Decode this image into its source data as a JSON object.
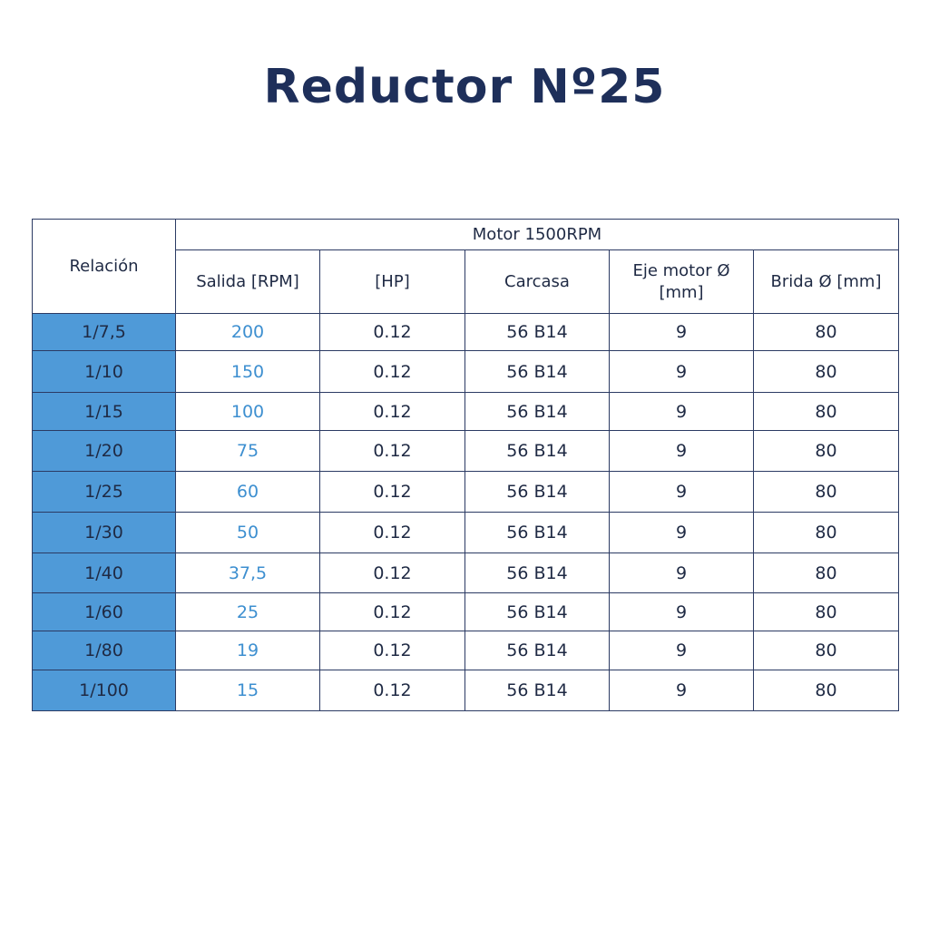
{
  "header": {
    "title": "Reductor Nº25"
  },
  "table": {
    "corner": "Relación",
    "group": "Motor 1500RPM",
    "columns": [
      "Salida [RPM]",
      "[HP]",
      "Carcasa",
      "Eje motor Ø [mm]",
      "Brida Ø [mm]"
    ],
    "rows": [
      [
        "1/7,5",
        "200",
        "0.12",
        "56 B14",
        "9",
        "80"
      ],
      [
        "1/10",
        "150",
        "0.12",
        "56 B14",
        "9",
        "80"
      ],
      [
        "1/15",
        "100",
        "0.12",
        "56 B14",
        "9",
        "80"
      ],
      [
        "1/20",
        "75",
        "0.12",
        "56 B14",
        "9",
        "80"
      ],
      [
        "1/25",
        "60",
        "0.12",
        "56 B14",
        "9",
        "80"
      ],
      [
        "1/30",
        "50",
        "0.12",
        "56 B14",
        "9",
        "80"
      ],
      [
        "1/40",
        "37,5",
        "0.12",
        "56 B14",
        "9",
        "80"
      ],
      [
        "1/60",
        "25",
        "0.12",
        "56 B14",
        "9",
        "80"
      ],
      [
        "1/80",
        "19",
        "0.12",
        "56 B14",
        "9",
        "80"
      ],
      [
        "1/100",
        "15",
        "0.12",
        "56 B14",
        "9",
        "80"
      ]
    ]
  }
}
